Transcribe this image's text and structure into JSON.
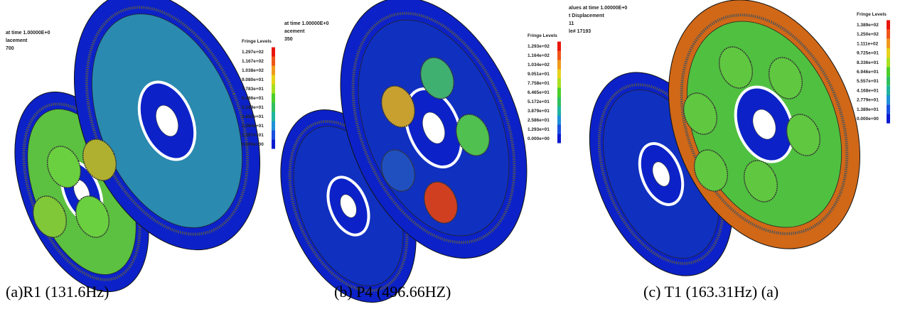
{
  "panels": [
    {
      "header": [
        "at time 1.00000E+0",
        "lacement",
        "700"
      ],
      "legend_title": "Fringe Levels",
      "legend": [
        "1.297e+02",
        "1.167e+02",
        "1.038e+02",
        "9.080e+01",
        "7.783e+01",
        "6.486e+01",
        "5.189e+01",
        "3.892e+01",
        "2.594e+01",
        "1.297e+01",
        "0.000e+00"
      ],
      "caption": "(a)R1 (131.6Hz)"
    },
    {
      "header": [
        "at time 1.00000E+0",
        "acement",
        "350"
      ],
      "legend_title": "Fringe Levels",
      "legend": [
        "1.293e+02",
        "1.164e+02",
        "1.034e+02",
        "9.051e+01",
        "7.758e+01",
        "6.465e+01",
        "5.172e+01",
        "3.879e+01",
        "2.586e+01",
        "1.293e+01",
        "0.000e+00"
      ],
      "caption": "(b) P4 (496.66HZ)"
    },
    {
      "header": [
        "alues at time 1.00000E+0",
        "t Displacement",
        "11",
        "le# 17193"
      ],
      "legend_title": "Fringe Levels",
      "legend": [
        "1.389e+02",
        "1.250e+02",
        "1.111e+02",
        "9.725e+01",
        "8.336e+01",
        "6.946e+01",
        "5.557e+01",
        "4.168e+01",
        "2.779e+01",
        "1.389e+01",
        "0.000e+00"
      ],
      "caption": "(c) T1 (163.31Hz) (a)"
    }
  ]
}
